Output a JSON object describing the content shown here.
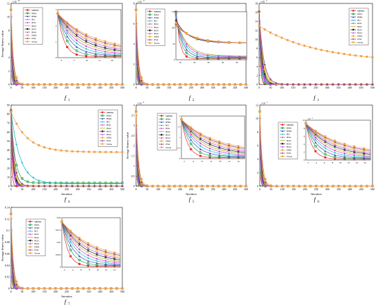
{
  "legend": {
    "labels": [
      "MHBO",
      "HBA",
      "HHO",
      "BO",
      "HO1",
      "HO2",
      "HO3",
      "HO4",
      "DBO",
      "PSO",
      "WOA"
    ]
  },
  "chart_data": [
    {
      "type": "line",
      "id": "f1",
      "caption": "f",
      "caption_sub": "1",
      "ylabel": "Average fitness value",
      "xlabel": "",
      "y_exponent": "10",
      "xlim": [
        0,
        500
      ],
      "x_ticks": [
        "0",
        "50",
        "100",
        "150",
        "200",
        "250",
        "300",
        "350",
        "400",
        "450",
        "500"
      ],
      "y_ticks": [
        "0",
        "2",
        "4",
        "6",
        "8",
        "10",
        "12"
      ],
      "ylim": [
        0,
        12
      ],
      "inset_x_ticks": [
        "0",
        "5",
        "10",
        "15",
        "20"
      ],
      "inset_y_ticks": [
        "0",
        "1",
        "2",
        "3"
      ],
      "legend_labels": [
        "MHBO",
        "HBA",
        "HHO",
        "BO",
        "HO1",
        "HO2",
        "HO3",
        "HO4",
        "DBO",
        "PSO",
        "WOA"
      ]
    },
    {
      "type": "line",
      "id": "f2",
      "caption": "f",
      "caption_sub": "2",
      "ylabel": "",
      "xlabel": "",
      "y_exponent": "17",
      "xlim": [
        0,
        500
      ],
      "x_ticks": [
        "0",
        "50",
        "100",
        "150",
        "200",
        "250",
        "300",
        "350",
        "400",
        "450",
        "500"
      ],
      "y_ticks": [
        "0",
        "2",
        "4",
        "6",
        "8"
      ],
      "ylim": [
        0,
        8
      ],
      "inset_x_ticks": [
        "10",
        "20",
        "30",
        "40",
        "50"
      ],
      "inset_y_ticks": [
        "0",
        "50",
        "100",
        "150"
      ],
      "legend_labels": [
        "MHBO",
        "HBA",
        "HHO",
        "BO",
        "HO1",
        "HO2",
        "HO3",
        "HO4",
        "DBO",
        "PSO",
        "WOA"
      ]
    },
    {
      "type": "line",
      "id": "f3",
      "caption": "f",
      "caption_sub": "3",
      "ylabel": "",
      "xlabel": "",
      "y_exponent": "4",
      "xlim": [
        0,
        500
      ],
      "x_ticks": [
        "0",
        "50",
        "100",
        "150",
        "200",
        "250",
        "300",
        "350",
        "400",
        "450",
        "500"
      ],
      "y_ticks": [
        "0",
        "2",
        "4",
        "6",
        "8",
        "10",
        "12",
        "14",
        "16",
        "18"
      ],
      "ylim": [
        0,
        18
      ],
      "legend_labels": [
        "MHBO",
        "HBA",
        "HHO",
        "BO",
        "HO1",
        "HO2",
        "HO3",
        "HO4",
        "DBO",
        "PSO",
        "WOA"
      ]
    },
    {
      "type": "line",
      "id": "f4",
      "caption": "f",
      "caption_sub": "4",
      "ylabel": "",
      "xlabel": "Iteration",
      "xlim": [
        0,
        500
      ],
      "x_ticks": [
        "0",
        "50",
        "100",
        "150",
        "200",
        "250",
        "300",
        "350",
        "400",
        "450",
        "500"
      ],
      "y_ticks": [
        "0",
        "10",
        "20",
        "30",
        "40",
        "50",
        "60",
        "70",
        "80",
        "90"
      ],
      "ylim": [
        0,
        90
      ],
      "legend_labels": [
        "MHBO",
        "HBA",
        "HHO",
        "BO",
        "HO1",
        "HO2",
        "HO3",
        "HO4",
        "DBO",
        "PSO",
        "WOA"
      ]
    },
    {
      "type": "line",
      "id": "f5",
      "caption": "f",
      "caption_sub": "5",
      "ylabel": "Average fitness value",
      "xlabel": "Iteration",
      "y_exponent": "8",
      "xlim": [
        0,
        500
      ],
      "x_ticks": [
        "0",
        "50",
        "100",
        "150",
        "200",
        "250",
        "300",
        "350",
        "400",
        "450",
        "500"
      ],
      "y_ticks": [
        "0",
        "0.5",
        "1",
        "1.5",
        "2",
        "2.5",
        "3",
        "3.5",
        "4"
      ],
      "ylim": [
        0,
        4
      ],
      "inset_x_ticks": [
        "2",
        "4",
        "6",
        "8",
        "10",
        "12",
        "14"
      ],
      "inset_y_ticks": [
        "0",
        "0.5",
        "1",
        "1.5",
        "2"
      ],
      "legend_labels": [
        "MHBO",
        "HBA",
        "HHO",
        "BO",
        "HO1",
        "HO2",
        "HO3",
        "HO4",
        "DBO",
        "PSO",
        "WOA"
      ]
    },
    {
      "type": "line",
      "id": "f6",
      "caption": "f",
      "caption_sub": "6",
      "ylabel": "",
      "xlabel": "Iteration",
      "y_exponent": "5",
      "xlim": [
        0,
        500
      ],
      "x_ticks": [
        "0",
        "50",
        "100",
        "150",
        "200",
        "250",
        "300",
        "350",
        "400",
        "450",
        "500"
      ],
      "y_ticks": [
        "0",
        "2",
        "4",
        "6",
        "8",
        "10",
        "12"
      ],
      "ylim": [
        0,
        12
      ],
      "inset_x_ticks": [
        "2",
        "4",
        "6",
        "8",
        "10",
        "12",
        "14",
        "16"
      ],
      "inset_y_ticks": [
        "0",
        "2",
        "4",
        "6",
        "8",
        "10"
      ],
      "inset_exponent": "4",
      "legend_labels": [
        "MHBO",
        "HBA",
        "HHO",
        "BO",
        "HO1",
        "HO2",
        "HO3",
        "HO4",
        "DBO",
        "PSO",
        "WOA"
      ]
    },
    {
      "type": "line",
      "id": "f7",
      "caption": "f",
      "caption_sub": "7",
      "ylabel": "Average fitness value",
      "xlabel": "Iteration",
      "xlim": [
        0,
        500
      ],
      "x_ticks": [
        "0",
        "50",
        "100",
        "150",
        "200",
        "250",
        "300",
        "350",
        "400",
        "450",
        "500"
      ],
      "y_ticks": [
        "0",
        "0.02",
        "0.04",
        "0.06",
        "0.08",
        "0.1",
        "0.12",
        "0.14"
      ],
      "ylim": [
        0,
        0.14
      ],
      "inset_x_ticks": [
        "2",
        "4",
        "6",
        "8",
        "10",
        "12",
        "14"
      ],
      "inset_y_ticks": [
        "0",
        "0.005",
        "0.01",
        "0.015",
        "0.02"
      ],
      "legend_labels": [
        "MHBO",
        "HBA",
        "HHO",
        "BO",
        "HO1",
        "HO2",
        "HO3",
        "HO4",
        "DBO",
        "PSO",
        "WOA"
      ]
    }
  ]
}
